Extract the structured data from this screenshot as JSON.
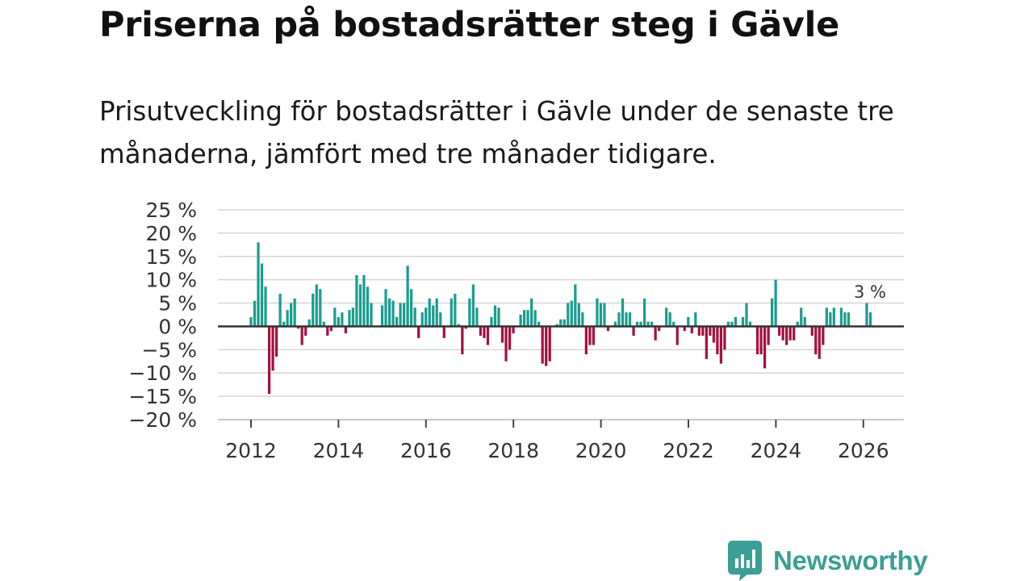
{
  "header": {
    "title": "Priserna på bostadsrätter steg i Gävle",
    "subtitle": "Prisutveckling för bostadsrätter i Gävle under de senaste tre månaderna, jämfört med tre månader tidigare."
  },
  "chart_data": {
    "type": "bar",
    "title": "Priserna på bostadsrätter steg i Gävle",
    "subtitle": "Prisutveckling för bostadsrätter i Gävle under de senaste tre månaderna, jämfört med tre månader tidigare.",
    "xlabel": "",
    "ylabel": "",
    "ylim": [
      -20,
      25
    ],
    "yticks": [
      25,
      20,
      15,
      10,
      5,
      0,
      -5,
      -10,
      -15,
      -20
    ],
    "ytick_labels": [
      "25 %",
      "20 %",
      "15 %",
      "10 %",
      "5 %",
      "0 %",
      "−5 %",
      "−10 %",
      "−15 %",
      "−20 %"
    ],
    "xticks": [
      2012,
      2014,
      2016,
      2018,
      2020,
      2022,
      2024,
      2026
    ],
    "xtick_labels": [
      "2012",
      "2014",
      "2016",
      "2018",
      "2020",
      "2022",
      "2024",
      "2026"
    ],
    "x_start": 2012.0,
    "x_step_years": 0.0833,
    "grid": true,
    "colors": {
      "positive": "#1a9d90",
      "negative": "#a3123f",
      "zero_line": "#333333",
      "grid": "#d6d6d6"
    },
    "annotation": {
      "label": "3 %",
      "value": 3
    },
    "series": [
      {
        "name": "Prisutveckling",
        "values": [
          2,
          5.5,
          18,
          13.5,
          8.5,
          -14.5,
          -9.5,
          -6.5,
          7,
          1,
          3.5,
          5,
          6,
          -0.5,
          -4,
          -2,
          1.5,
          7,
          9,
          8,
          1,
          -2,
          -1,
          4,
          2,
          3,
          -1.5,
          3.5,
          4,
          11,
          9,
          11,
          8.5,
          5,
          0,
          0,
          4.5,
          8,
          6,
          5.5,
          2,
          5,
          5,
          13,
          8,
          4,
          -2.5,
          3,
          4,
          6,
          4.5,
          6,
          3,
          -2.5,
          0,
          6,
          7,
          0.5,
          -6,
          -0.5,
          6,
          9,
          4,
          -2,
          -2.5,
          -4,
          2,
          4.5,
          4,
          -3.5,
          -7.5,
          -5,
          -1.5,
          0,
          2.5,
          3.5,
          3.5,
          6,
          3.5,
          1,
          -8,
          -8.5,
          -7.5,
          0,
          0.5,
          1.5,
          1.5,
          5,
          5.5,
          9,
          5,
          3,
          -6,
          -4,
          -4,
          6,
          5,
          5,
          -1,
          0,
          1,
          3,
          6,
          3,
          3,
          -2,
          1,
          1,
          6,
          1,
          1,
          -3,
          -1,
          0,
          4,
          3,
          1,
          -4,
          0,
          -1,
          2,
          -1.5,
          3,
          -2,
          -2,
          -7,
          -2,
          -3.5,
          -6,
          -8,
          -5,
          1,
          1,
          2,
          0,
          2,
          5,
          1,
          0,
          -6,
          -6,
          -9,
          -4,
          6,
          10,
          -2,
          -3,
          -4,
          -3,
          -3,
          1,
          4,
          2,
          0,
          -2,
          -6,
          -7,
          -4,
          4,
          3,
          4,
          0,
          4,
          3,
          3,
          0,
          0,
          0,
          0,
          5,
          3
        ]
      }
    ]
  },
  "logo": {
    "name": "Newsworthy",
    "icon": "newsworthy-bubble-chart-icon"
  }
}
